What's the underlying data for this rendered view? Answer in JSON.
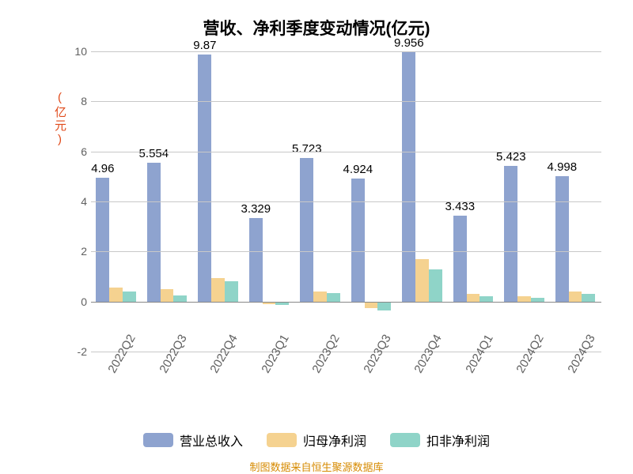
{
  "chart": {
    "type": "bar",
    "title": "营收、净利季度变动情况(亿元)",
    "title_fontsize": 21,
    "title_color": "#000000",
    "ylabel": "(亿元)",
    "ylabel_color": "#e04a1a",
    "ylabel_fontsize": 15,
    "background_color": "#ffffff",
    "grid_color": "#c8c8c8",
    "axis_label_color": "#606060",
    "ylim": [
      -2,
      10
    ],
    "yticks": [
      -2,
      0,
      2,
      4,
      6,
      8,
      10
    ],
    "categories": [
      "2022Q2",
      "2022Q3",
      "2022Q4",
      "2023Q1",
      "2023Q2",
      "2023Q3",
      "2023Q4",
      "2024Q1",
      "2024Q2",
      "2024Q3"
    ],
    "series": [
      {
        "name": "营业总收入",
        "color": "#8ea3cf",
        "values": [
          4.96,
          5.554,
          9.87,
          3.329,
          5.723,
          4.924,
          9.956,
          3.433,
          5.423,
          4.998
        ]
      },
      {
        "name": "归母净利润",
        "color": "#f5d290",
        "values": [
          0.55,
          0.5,
          0.95,
          -0.1,
          0.4,
          -0.25,
          1.7,
          0.3,
          0.2,
          0.4
        ]
      },
      {
        "name": "扣非净利润",
        "color": "#8fd4c8",
        "values": [
          0.4,
          0.25,
          0.8,
          -0.15,
          0.35,
          -0.35,
          1.3,
          0.2,
          0.15,
          0.3
        ]
      }
    ],
    "value_labels": [
      "4.96",
      "5.554",
      "9.87",
      "3.329",
      "5.723",
      "4.924",
      "9.956",
      "3.433",
      "5.423",
      "4.998"
    ],
    "value_label_fontsize": 15,
    "value_label_color": "#000000",
    "bar_width_pct": 26,
    "footer": "制图数据来自恒生聚源数据库",
    "footer_color": "#d68a00",
    "footer_fontsize": 13,
    "legend_fontsize": 16
  }
}
